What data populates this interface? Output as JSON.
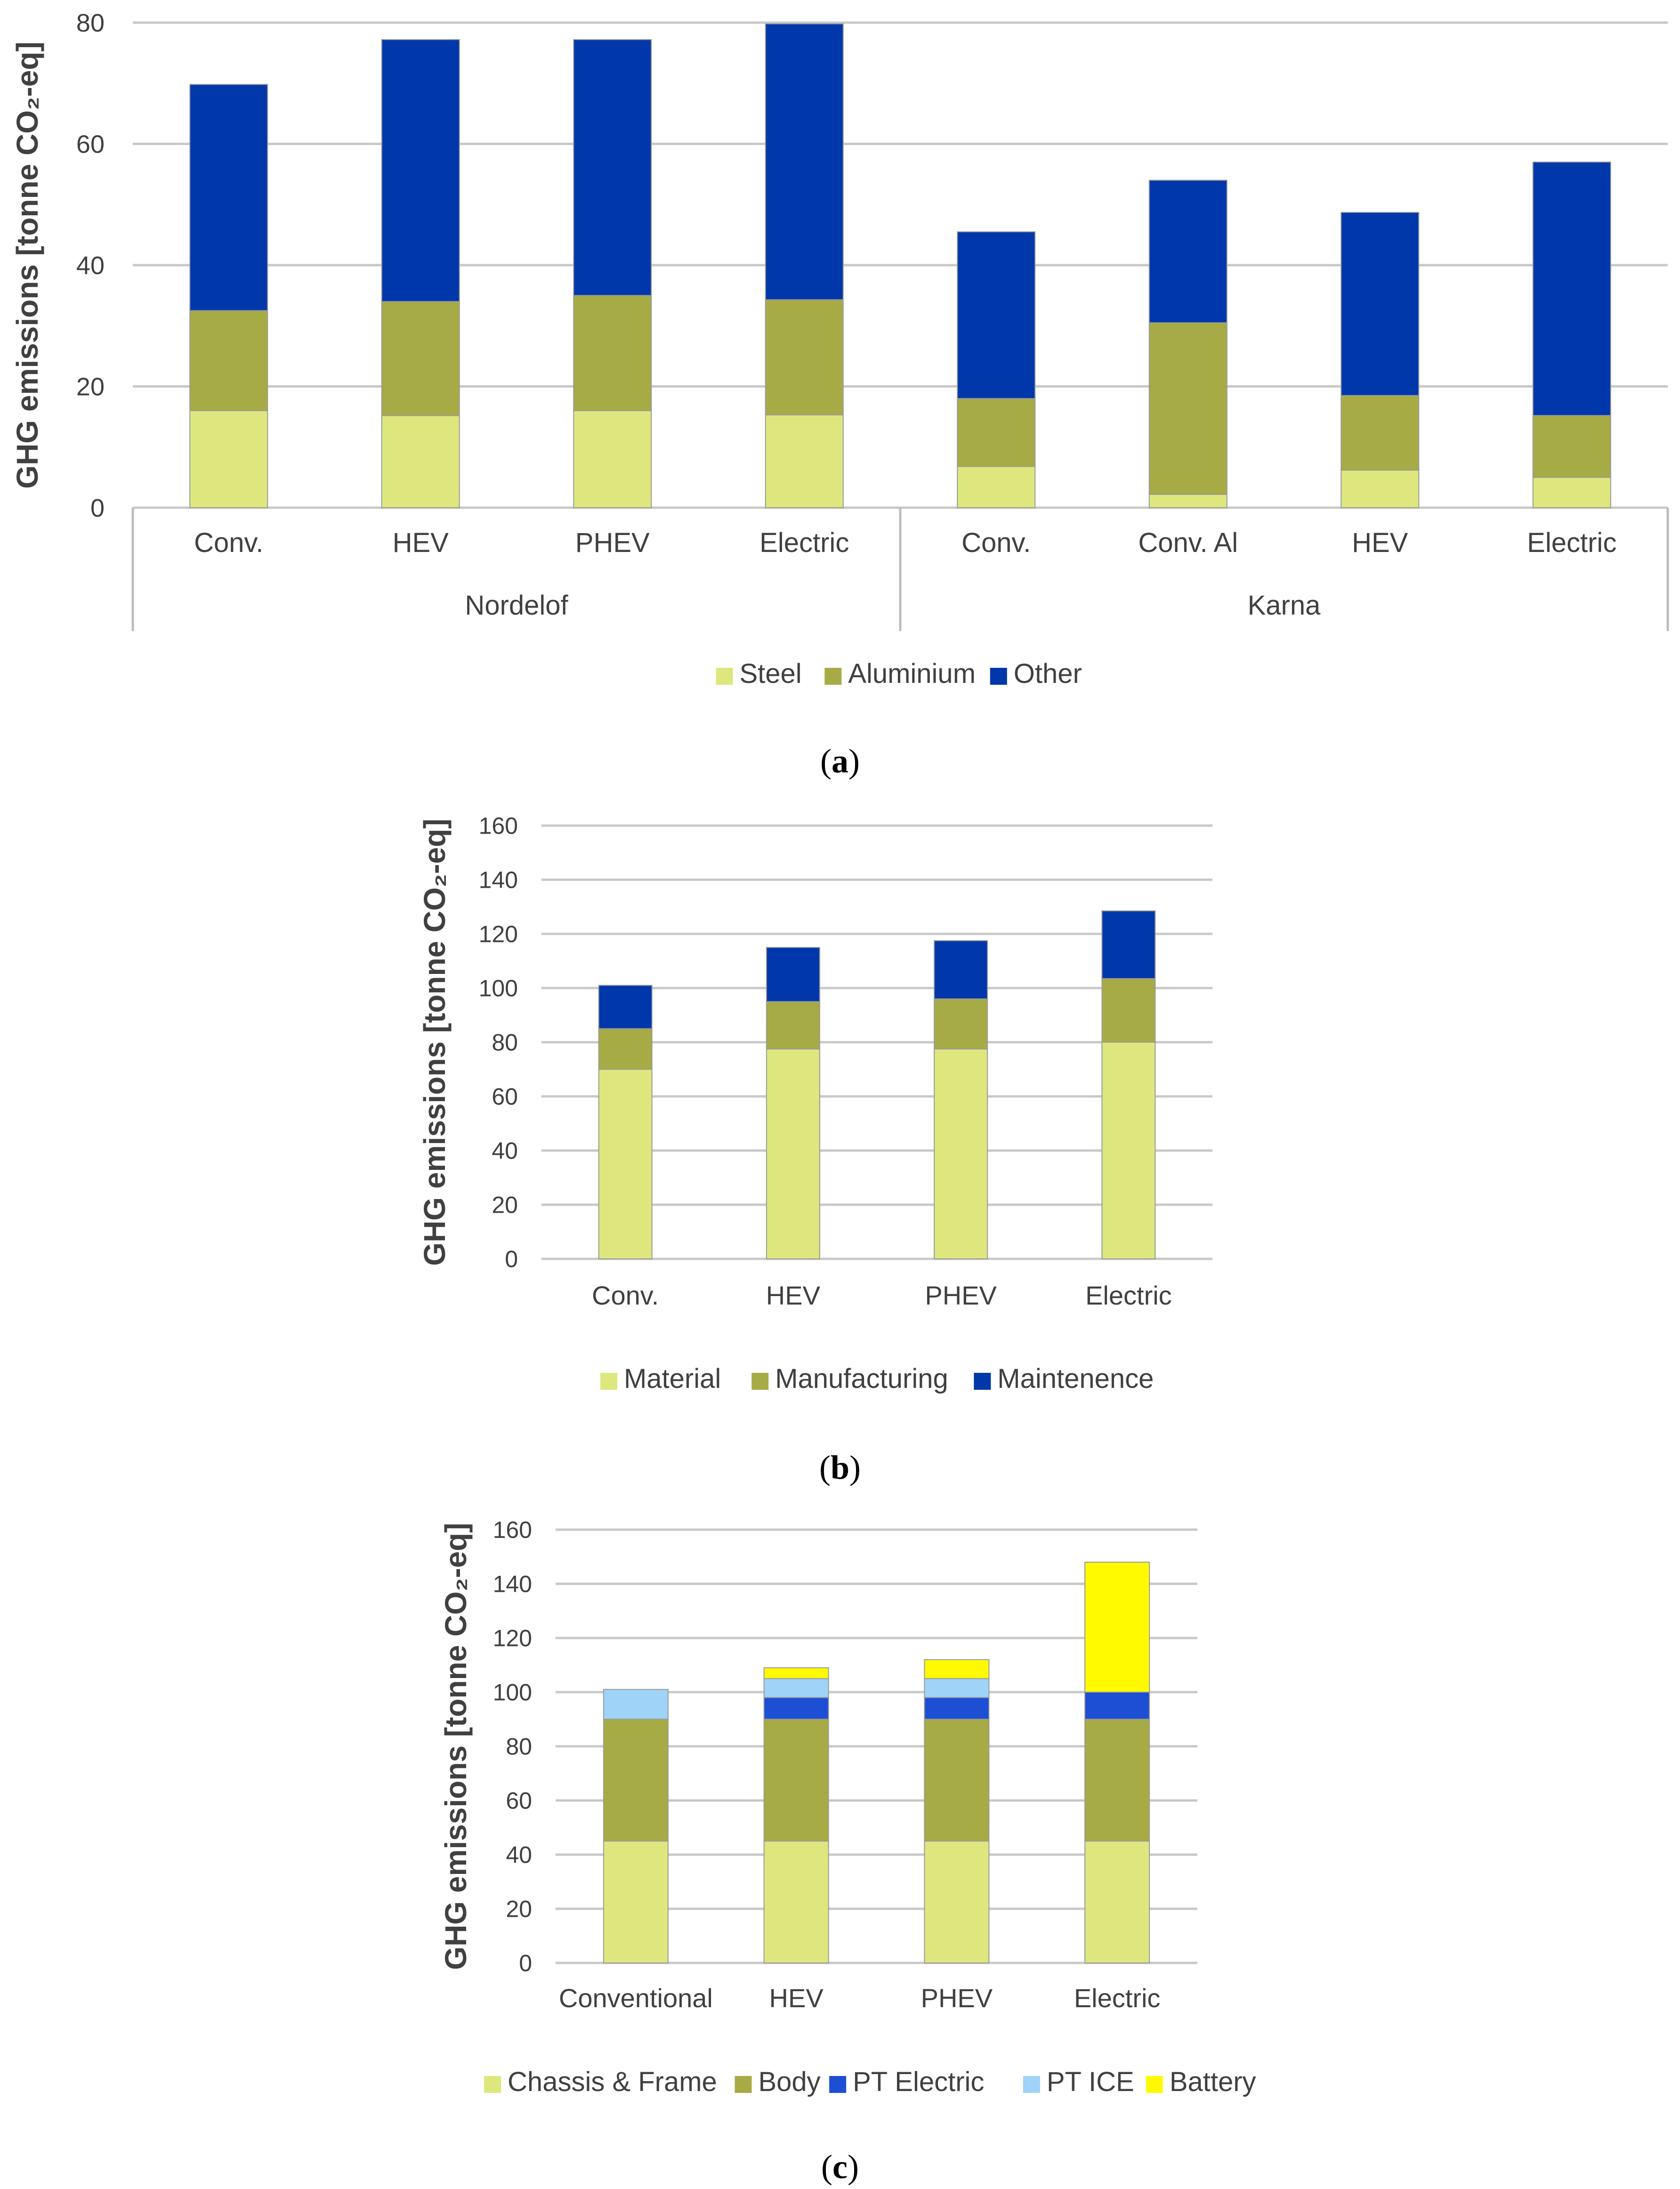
{
  "colors": {
    "steel": "#dde77e",
    "aluminium": "#a7ab45",
    "other": "#0037ab",
    "material": "#dde77e",
    "manufacturing": "#a7ab45",
    "maintenence": "#0037ab",
    "chassis": "#dde77e",
    "body": "#a7ab45",
    "pt_electric": "#1d4fd4",
    "pt_ice": "#9fd3f7",
    "battery": "#fffa00",
    "grid": "#c8c8c8",
    "text": "#404040"
  },
  "chart_data": [
    {
      "id": "a",
      "caption": "(a)",
      "caption_letter": "a",
      "type": "bar",
      "stacked": true,
      "ylabel": "GHG emissions [tonne CO₂-eq]",
      "ylim": [
        0,
        80
      ],
      "yticks": [
        0,
        20,
        40,
        60,
        80
      ],
      "groups": [
        {
          "name": "Nordelof",
          "categories": [
            "Conv.",
            "HEV",
            "PHEV",
            "Electric"
          ]
        },
        {
          "name": "Karna",
          "categories": [
            "Conv.",
            "Conv. Al",
            "HEV",
            "Electric"
          ]
        }
      ],
      "categories": [
        "Conv.",
        "HEV",
        "PHEV",
        "Electric",
        "Conv.",
        "Conv. Al",
        "HEV",
        "Electric"
      ],
      "series": [
        {
          "name": "Steel",
          "color_key": "steel",
          "values": [
            16,
            15.2,
            16,
            15.3,
            6.8,
            2.2,
            6.2,
            5
          ]
        },
        {
          "name": "Aluminium",
          "color_key": "aluminium",
          "values": [
            16.5,
            18.8,
            19,
            19,
            11.2,
            28.3,
            12.3,
            10.2
          ]
        },
        {
          "name": "Other",
          "color_key": "other",
          "values": [
            37.3,
            43.2,
            42.2,
            45.5,
            27.5,
            23.5,
            30.2,
            41.8
          ]
        }
      ],
      "legend": [
        "Steel",
        "Aluminium",
        "Other"
      ]
    },
    {
      "id": "b",
      "caption": "(b)",
      "caption_letter": "b",
      "type": "bar",
      "stacked": true,
      "ylabel": "GHG emissions [tonne CO₂-eq]",
      "ylim": [
        0,
        160
      ],
      "yticks": [
        0,
        20,
        40,
        60,
        80,
        100,
        120,
        140,
        160
      ],
      "categories": [
        "Conv.",
        "HEV",
        "PHEV",
        "Electric"
      ],
      "series": [
        {
          "name": "Material",
          "color_key": "material",
          "values": [
            70,
            77.5,
            77.5,
            80
          ]
        },
        {
          "name": "Manufacturing",
          "color_key": "manufacturing",
          "values": [
            15,
            17.5,
            18.5,
            23.5
          ]
        },
        {
          "name": "Maintenence",
          "color_key": "maintenence",
          "values": [
            16,
            20,
            21.5,
            25
          ]
        }
      ],
      "legend": [
        "Material",
        "Manufacturing",
        "Maintenence"
      ]
    },
    {
      "id": "c",
      "caption": "(c)",
      "caption_letter": "c",
      "type": "bar",
      "stacked": true,
      "ylabel": "GHG emissions [tonne CO₂-eq]",
      "ylim": [
        0,
        160
      ],
      "yticks": [
        0,
        20,
        40,
        60,
        80,
        100,
        120,
        140,
        160
      ],
      "categories": [
        "Conventional",
        "HEV",
        "PHEV",
        "Electric"
      ],
      "series": [
        {
          "name": "Chassis & Frame",
          "color_key": "chassis",
          "values": [
            45,
            45,
            45,
            45
          ]
        },
        {
          "name": "Body",
          "color_key": "body",
          "values": [
            45,
            45,
            45,
            45
          ]
        },
        {
          "name": "PT Electric",
          "color_key": "pt_electric",
          "values": [
            0,
            8,
            8,
            10
          ]
        },
        {
          "name": "PT ICE",
          "color_key": "pt_ice",
          "values": [
            11,
            7,
            7,
            0
          ]
        },
        {
          "name": "Battery",
          "color_key": "battery",
          "values": [
            0,
            4,
            7,
            48
          ]
        }
      ],
      "legend": [
        "Chassis & Frame",
        "Body",
        "PT Electric",
        "PT ICE",
        "Battery"
      ]
    }
  ]
}
